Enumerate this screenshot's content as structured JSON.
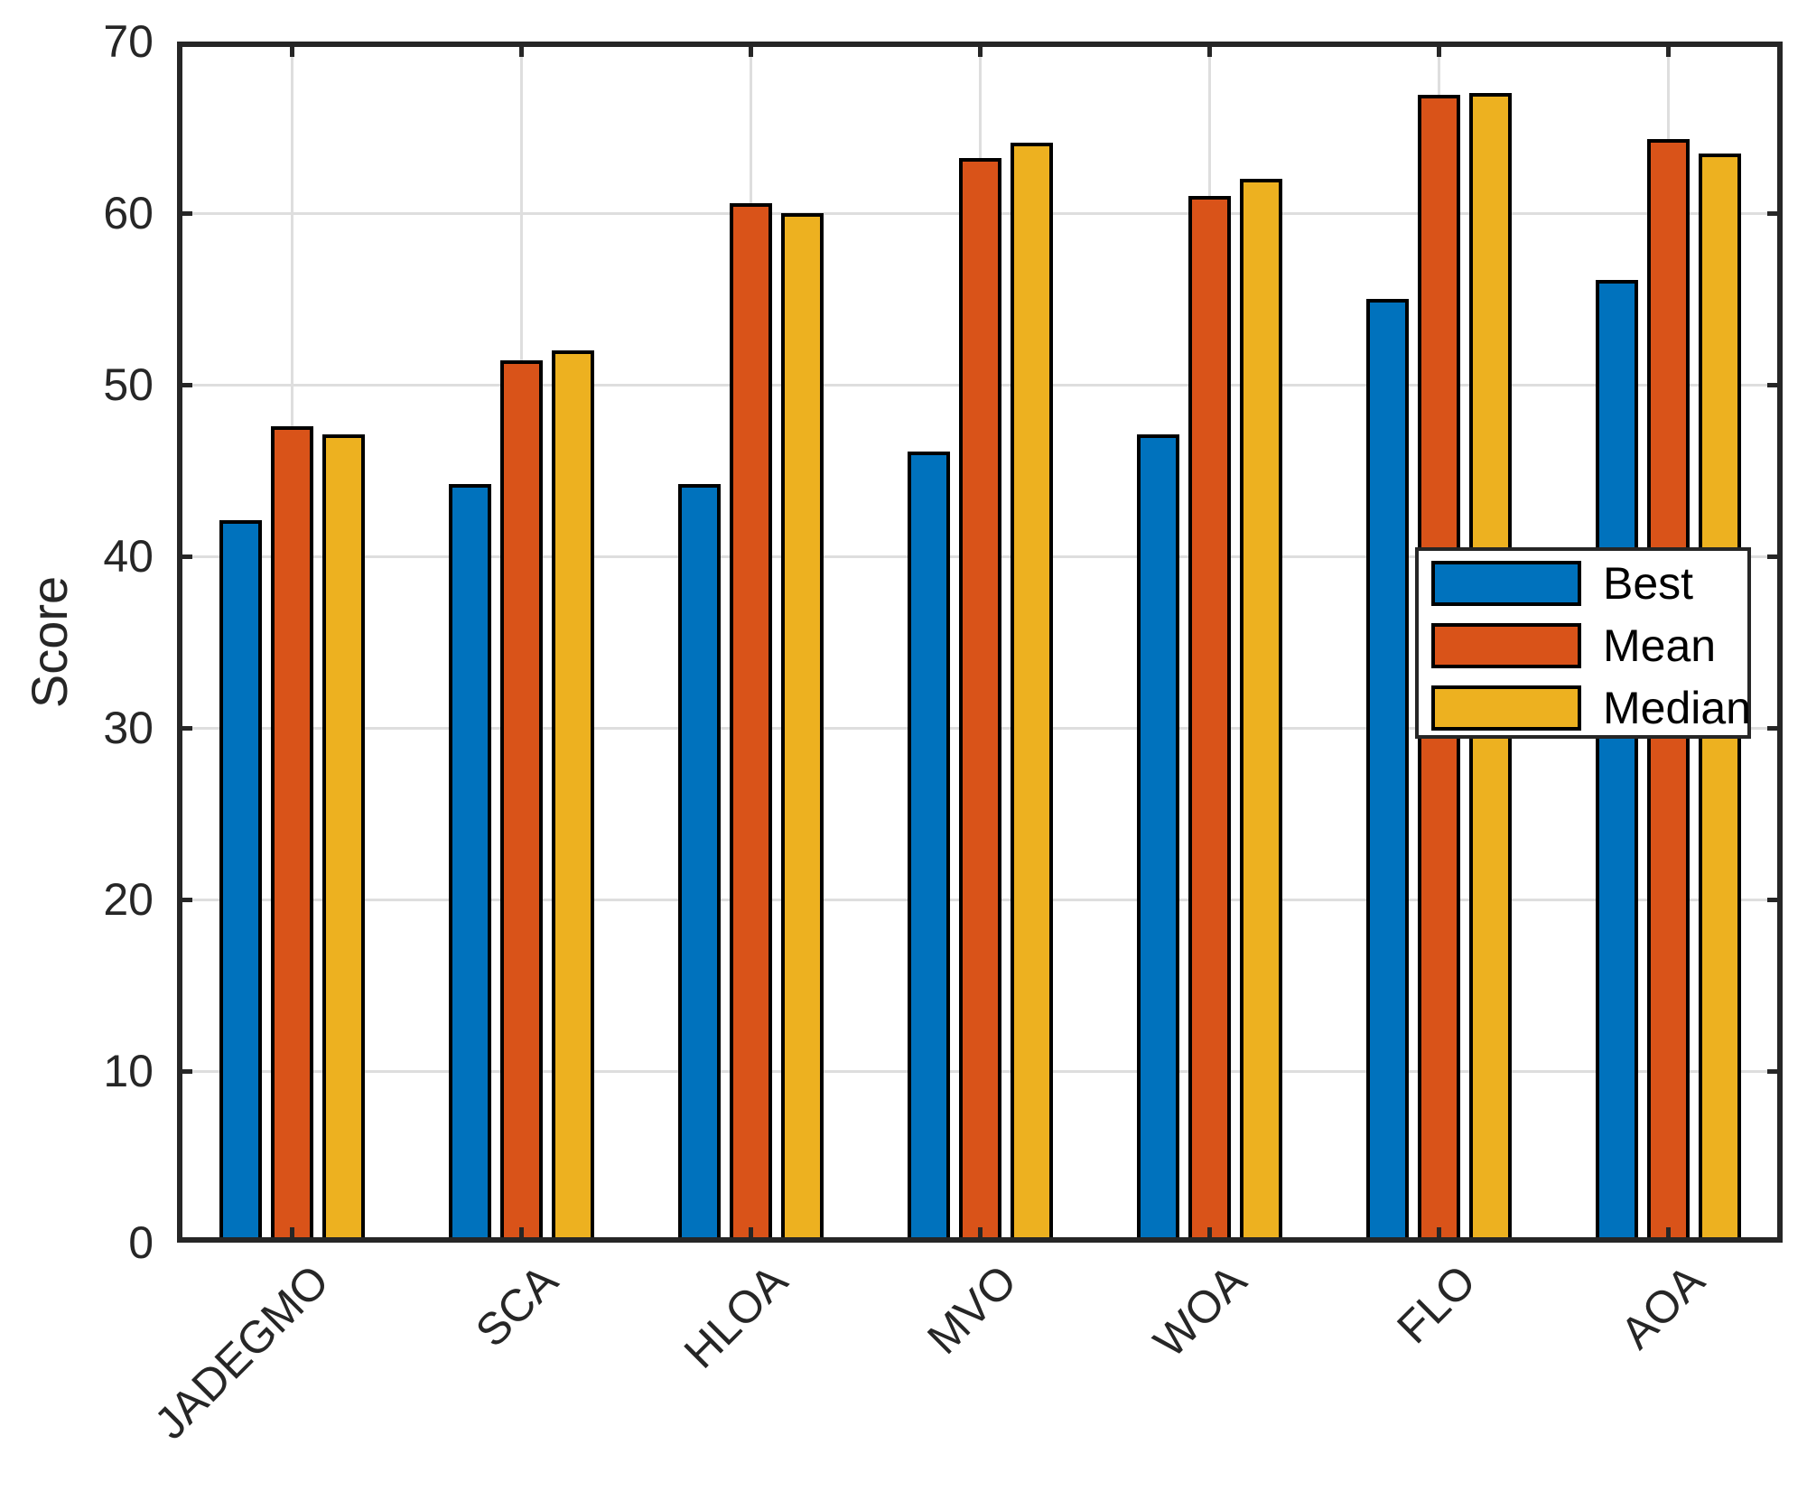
{
  "chart_data": {
    "type": "bar",
    "variant": "grouped",
    "title": "",
    "xlabel": "",
    "ylabel": "Score",
    "categories": [
      "JADEGMO",
      "SCA",
      "HLOA",
      "MVO",
      "WOA",
      "FLO",
      "AOA"
    ],
    "series": [
      {
        "name": "Best",
        "color": "#0072BD",
        "values": [
          42.1,
          44.2,
          44.2,
          46.1,
          47.1,
          55.0,
          56.1
        ]
      },
      {
        "name": "Mean",
        "color": "#D95319",
        "values": [
          47.6,
          51.4,
          60.6,
          63.2,
          61.0,
          66.9,
          64.3
        ]
      },
      {
        "name": "Median",
        "color": "#EDB120",
        "values": [
          47.1,
          52.0,
          60.0,
          64.1,
          62.0,
          67.0,
          63.5
        ]
      }
    ],
    "ylim": [
      0,
      70
    ],
    "yticks": [
      0,
      10,
      20,
      30,
      40,
      50,
      60,
      70
    ],
    "grid": true,
    "grid_color": "#DEDEDE",
    "axis_color": "#262626",
    "bar_edge_color": "#000000",
    "x_tick_label_rotation_deg": 45,
    "legend_position": "middle-right",
    "legend_entries": [
      "Best",
      "Mean",
      "Median"
    ]
  }
}
